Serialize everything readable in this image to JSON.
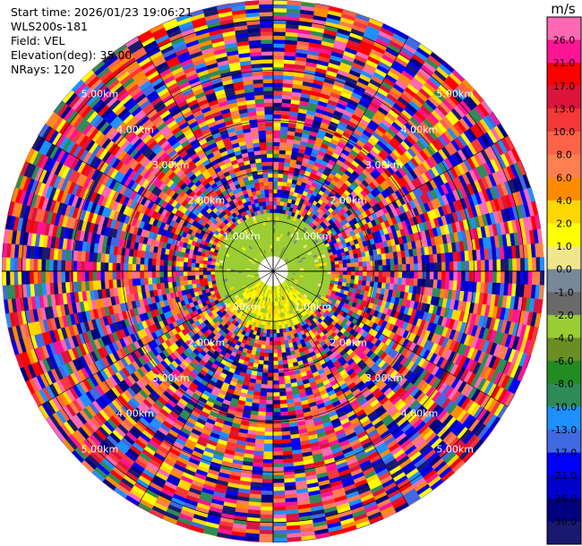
{
  "header": {
    "start_time": "Start time: 2026/01/23 19:06:21",
    "instrument": "WLS200s-181",
    "field": "Field: VEL",
    "elevation": "Elevation(deg): 35.00",
    "nrays": "NRays: 120"
  },
  "chart_data": {
    "type": "heatmap",
    "projection": "polar PPI",
    "field": "VEL",
    "nrays": 120,
    "elevation_deg": 35.0,
    "range_labels_km": [
      "1.00km",
      "2.00km",
      "3.00km",
      "4.00km",
      "5.00km"
    ],
    "range_rings_km": [
      1,
      2,
      3,
      4,
      5
    ],
    "max_range_km": 5.4,
    "colorbar": {
      "unit": "m/s",
      "ticks": [
        "26.0",
        "21.0",
        "17.0",
        "13.0",
        "10.0",
        "8.0",
        "6.0",
        "4.0",
        "2.0",
        "1.0",
        "0.0",
        "-1.0",
        "-2.0",
        "-4.0",
        "-6.0",
        "-8.0",
        "-10.0",
        "-13.0",
        "-17.0",
        "-21.0",
        "-26.0",
        "-30.0"
      ],
      "colors": [
        "#ff69b4",
        "#ff1493",
        "#ff0000",
        "#dc143c",
        "#f53838",
        "#ff6347",
        "#ff7f50",
        "#ff8c00",
        "#ffd700",
        "#ffff00",
        "#f0e68c",
        "#778899",
        "#696969",
        "#9acd32",
        "#6b8e23",
        "#228b22",
        "#2e8b57",
        "#1e90ff",
        "#4169e1",
        "#0000ff",
        "#0000cd",
        "#000080",
        "#191970"
      ]
    }
  }
}
